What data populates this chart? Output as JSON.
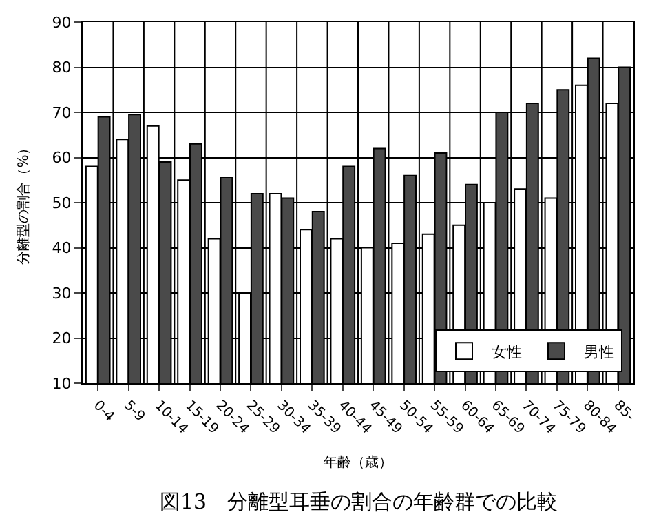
{
  "chart_data": {
    "type": "bar",
    "title": "図13　分離型耳垂の割合の年齢群での比較",
    "xlabel": "年齢（歳）",
    "ylabel": "分離型の割合（%）",
    "categories": [
      "0-4",
      "5-9",
      "10-14",
      "15-19",
      "20-24",
      "25-29",
      "30-34",
      "35-39",
      "40-44",
      "45-49",
      "50-54",
      "55-59",
      "60-64",
      "65-69",
      "70-74",
      "75-79",
      "80-84",
      "85-"
    ],
    "series": [
      {
        "name": "女性",
        "color": "#ffffff",
        "values": [
          58,
          64,
          67,
          55,
          42,
          30,
          52,
          44,
          42,
          40,
          41,
          43,
          45,
          50,
          53,
          51,
          76,
          72
        ]
      },
      {
        "name": "男性",
        "color": "#4a4a4a",
        "values": [
          69,
          69.5,
          59,
          63,
          55.5,
          52,
          51,
          48,
          58,
          62,
          56,
          61,
          54,
          70,
          72,
          75,
          82,
          80
        ]
      }
    ],
    "ylim": [
      10,
      90
    ],
    "yticks": [
      10,
      20,
      30,
      40,
      50,
      60,
      70,
      80,
      90
    ],
    "grid": true,
    "legend": "bottom right"
  }
}
